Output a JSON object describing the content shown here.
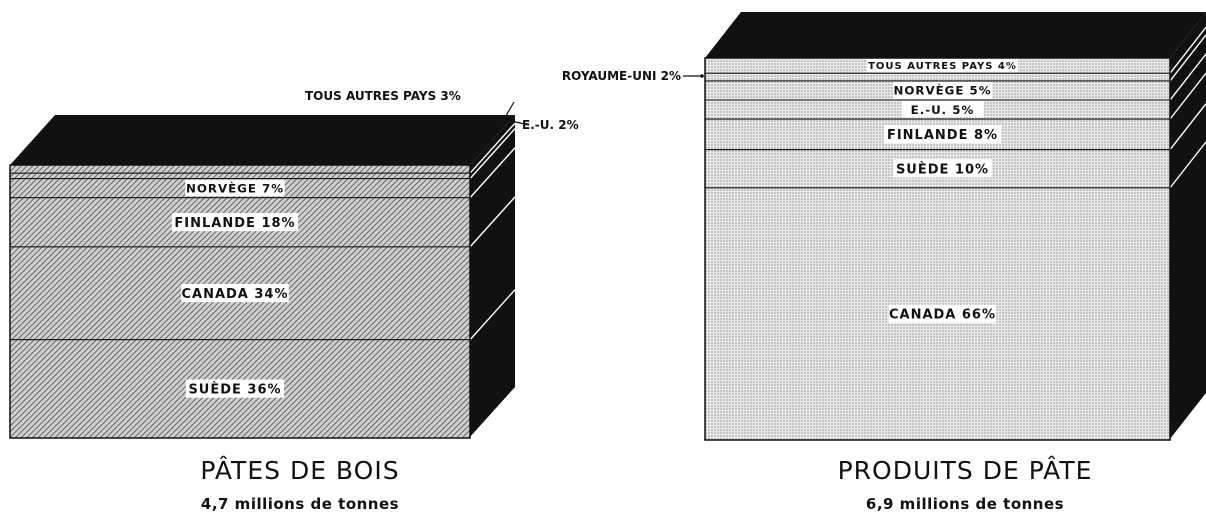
{
  "chart_data": [
    {
      "type": "stacked-block",
      "title": "PÂTES DE BOIS",
      "subtitle": "4,7 millions de tonnes",
      "unit": "%",
      "segments": [
        {
          "label": "TOUS AUTRES PAYS 3%",
          "value": 3
        },
        {
          "label": "E.-U. 2%",
          "value": 2
        },
        {
          "label": "NORVÈGE 7%",
          "value": 7
        },
        {
          "label": "FINLANDE 18%",
          "value": 18
        },
        {
          "label": "CANADA 34%",
          "value": 34
        },
        {
          "label": "SUÈDE 36%",
          "value": 36
        }
      ]
    },
    {
      "type": "stacked-block",
      "title": "PRODUITS DE PÂTE",
      "subtitle": "6,9 millions de tonnes",
      "unit": "%",
      "segments": [
        {
          "label": "TOUS AUTRES PAYS 4%",
          "value": 4
        },
        {
          "label": "ROYAUME-UNI 2%",
          "value": 2
        },
        {
          "label": "NORVÈGE 5%",
          "value": 5
        },
        {
          "label": "E.-U. 5%",
          "value": 5
        },
        {
          "label": "FINLANDE 8%",
          "value": 8
        },
        {
          "label": "SUÈDE 10%",
          "value": 10
        },
        {
          "label": "CANADA 66%",
          "value": 66
        }
      ]
    }
  ],
  "colors": {
    "ink": "#111111",
    "face_left": "diagonal-hatch",
    "face_right": "fine-stipple"
  }
}
